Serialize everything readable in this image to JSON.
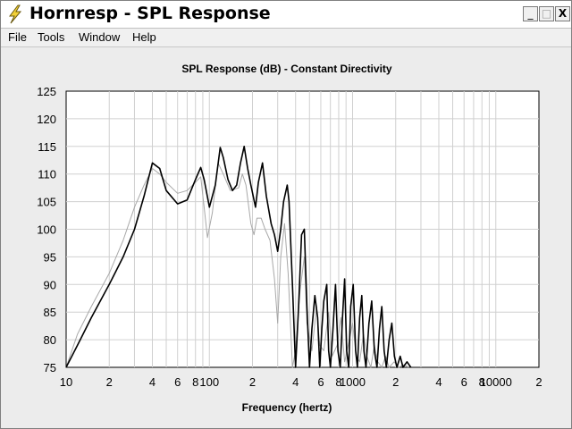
{
  "window": {
    "title": "Hornresp - SPL Response",
    "min_glyph": "_",
    "max_glyph": "□",
    "close_glyph": "X"
  },
  "menu": {
    "items": [
      "File",
      "Tools",
      "Window",
      "Help"
    ]
  },
  "colors": {
    "series_primary": "#000000",
    "series_secondary": "#a8a8a8",
    "grid": "#d0d0d0",
    "plot_bg": "#ffffff"
  },
  "chart_data": {
    "type": "line",
    "title": "SPL Response (dB) - Constant Directivity",
    "xlabel": "Frequency (hertz)",
    "ylabel": "",
    "xscale": "log",
    "xlim": [
      10,
      20000
    ],
    "ylim": [
      75,
      125
    ],
    "y_ticks": [
      75,
      80,
      85,
      90,
      95,
      100,
      105,
      110,
      115,
      120,
      125
    ],
    "x_ticks": [
      {
        "value": 10,
        "label": "10"
      },
      {
        "value": 20,
        "label": "2"
      },
      {
        "value": 40,
        "label": "4"
      },
      {
        "value": 60,
        "label": "6"
      },
      {
        "value": 80,
        "label": "8"
      },
      {
        "value": 100,
        "label": "100"
      },
      {
        "value": 200,
        "label": "2"
      },
      {
        "value": 400,
        "label": "4"
      },
      {
        "value": 600,
        "label": "6"
      },
      {
        "value": 800,
        "label": "8"
      },
      {
        "value": 1000,
        "label": "1000"
      },
      {
        "value": 2000,
        "label": "2"
      },
      {
        "value": 4000,
        "label": "4"
      },
      {
        "value": 6000,
        "label": "6"
      },
      {
        "value": 8000,
        "label": "8"
      },
      {
        "value": 10000,
        "label": "10000"
      },
      {
        "value": 20000,
        "label": "2"
      }
    ],
    "grid": true,
    "legend": "none",
    "series": [
      {
        "points": [
          [
            10,
            75
          ],
          [
            12,
            79
          ],
          [
            15,
            84
          ],
          [
            20,
            90
          ],
          [
            25,
            95
          ],
          [
            30,
            100
          ],
          [
            35,
            106
          ],
          [
            40,
            112
          ],
          [
            45,
            111
          ],
          [
            50,
            107
          ],
          [
            60,
            104.6
          ],
          [
            70,
            105.3
          ],
          [
            80,
            109
          ],
          [
            87,
            111.2
          ],
          [
            92,
            109
          ],
          [
            100,
            104
          ],
          [
            110,
            108
          ],
          [
            119,
            114.8
          ],
          [
            125,
            113
          ],
          [
            135,
            109
          ],
          [
            145,
            107
          ],
          [
            155,
            108
          ],
          [
            165,
            112
          ],
          [
            175,
            115
          ],
          [
            185,
            111
          ],
          [
            195,
            108
          ],
          [
            210,
            104
          ],
          [
            220,
            108.5
          ],
          [
            235,
            112
          ],
          [
            250,
            106
          ],
          [
            270,
            101
          ],
          [
            285,
            99
          ],
          [
            300,
            96
          ],
          [
            315,
            100
          ],
          [
            330,
            105
          ],
          [
            350,
            108
          ],
          [
            360,
            105
          ],
          [
            380,
            90
          ],
          [
            400,
            75
          ],
          [
            420,
            86
          ],
          [
            440,
            99
          ],
          [
            460,
            100
          ],
          [
            480,
            86
          ],
          [
            500,
            75
          ],
          [
            520,
            82
          ],
          [
            545,
            88
          ],
          [
            570,
            84
          ],
          [
            590,
            75
          ],
          [
            610,
            82
          ],
          [
            630,
            87
          ],
          [
            660,
            90
          ],
          [
            680,
            78
          ],
          [
            700,
            75
          ],
          [
            730,
            82
          ],
          [
            760,
            90
          ],
          [
            790,
            78
          ],
          [
            820,
            75
          ],
          [
            850,
            84
          ],
          [
            880,
            91
          ],
          [
            910,
            78
          ],
          [
            940,
            75
          ],
          [
            970,
            86
          ],
          [
            1010,
            90
          ],
          [
            1050,
            78
          ],
          [
            1080,
            75
          ],
          [
            1120,
            84
          ],
          [
            1160,
            88
          ],
          [
            1200,
            78
          ],
          [
            1240,
            75
          ],
          [
            1300,
            83
          ],
          [
            1360,
            87
          ],
          [
            1420,
            78
          ],
          [
            1480,
            75
          ],
          [
            1540,
            82
          ],
          [
            1600,
            86
          ],
          [
            1660,
            78
          ],
          [
            1720,
            75
          ],
          [
            1800,
            80
          ],
          [
            1880,
            83
          ],
          [
            1960,
            77
          ],
          [
            2040,
            75
          ],
          [
            2150,
            77
          ],
          [
            2250,
            75
          ],
          [
            2400,
            76
          ],
          [
            2550,
            75
          ]
        ]
      },
      {
        "points": [
          [
            10,
            75
          ],
          [
            12,
            81
          ],
          [
            15,
            86
          ],
          [
            20,
            92
          ],
          [
            25,
            98
          ],
          [
            30,
            104
          ],
          [
            35,
            108
          ],
          [
            40,
            111
          ],
          [
            45,
            110
          ],
          [
            50,
            108.5
          ],
          [
            60,
            106.5
          ],
          [
            70,
            107
          ],
          [
            80,
            108.5
          ],
          [
            87,
            109.5
          ],
          [
            92,
            104
          ],
          [
            97,
            98.5
          ],
          [
            105,
            103
          ],
          [
            115,
            112
          ],
          [
            125,
            110
          ],
          [
            140,
            107
          ],
          [
            160,
            107.5
          ],
          [
            170,
            110
          ],
          [
            180,
            108
          ],
          [
            195,
            101
          ],
          [
            205,
            99
          ],
          [
            215,
            102
          ],
          [
            230,
            102
          ],
          [
            245,
            100
          ],
          [
            265,
            98
          ],
          [
            285,
            91
          ],
          [
            300,
            83
          ],
          [
            315,
            95
          ],
          [
            335,
            101
          ],
          [
            355,
            92
          ],
          [
            380,
            75
          ],
          [
            400,
            78
          ],
          [
            430,
            89
          ],
          [
            460,
            95
          ],
          [
            480,
            83
          ],
          [
            520,
            78
          ],
          [
            560,
            86
          ],
          [
            590,
            79
          ],
          [
            630,
            78
          ],
          [
            680,
            85
          ],
          [
            720,
            77
          ],
          [
            780,
            79
          ],
          [
            830,
            84
          ],
          [
            880,
            76
          ],
          [
            950,
            80
          ],
          [
            1000,
            83
          ],
          [
            1060,
            77
          ],
          [
            1120,
            76
          ],
          [
            1190,
            81
          ],
          [
            1260,
            77
          ],
          [
            1340,
            75
          ],
          [
            1420,
            79
          ],
          [
            1500,
            76
          ],
          [
            1600,
            75
          ],
          [
            1700,
            77
          ],
          [
            1800,
            75
          ],
          [
            1950,
            76
          ],
          [
            2100,
            75
          ],
          [
            2300,
            75.5
          ],
          [
            2450,
            75
          ]
        ]
      }
    ]
  }
}
